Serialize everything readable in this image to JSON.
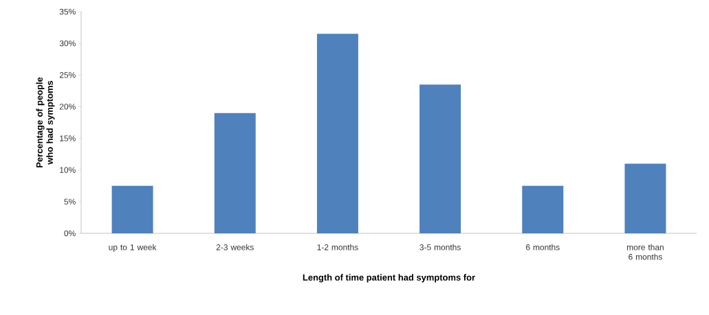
{
  "chart_data": {
    "type": "bar",
    "xlabel": "Length of time patient had symptoms for",
    "ylabel": "Percentage of people who had symptoms",
    "categories": [
      "up to 1 week",
      "2-3 weeks",
      "1-2 months",
      "3-5 months",
      "6 months",
      "more than 6 months"
    ],
    "values": [
      7.5,
      19,
      31.5,
      23.5,
      7.5,
      11
    ],
    "color": "#4f81bd",
    "ylim": [
      0,
      35
    ],
    "yticks": [
      {
        "value": 0,
        "label": "0%"
      },
      {
        "value": 5,
        "label": "5%"
      },
      {
        "value": 10,
        "label": "10%"
      },
      {
        "value": 15,
        "label": "15%"
      },
      {
        "value": 20,
        "label": "20%"
      },
      {
        "value": 25,
        "label": "25%"
      },
      {
        "value": 30,
        "label": "30%"
      },
      {
        "value": 35,
        "label": "35%"
      }
    ],
    "grid": false
  }
}
